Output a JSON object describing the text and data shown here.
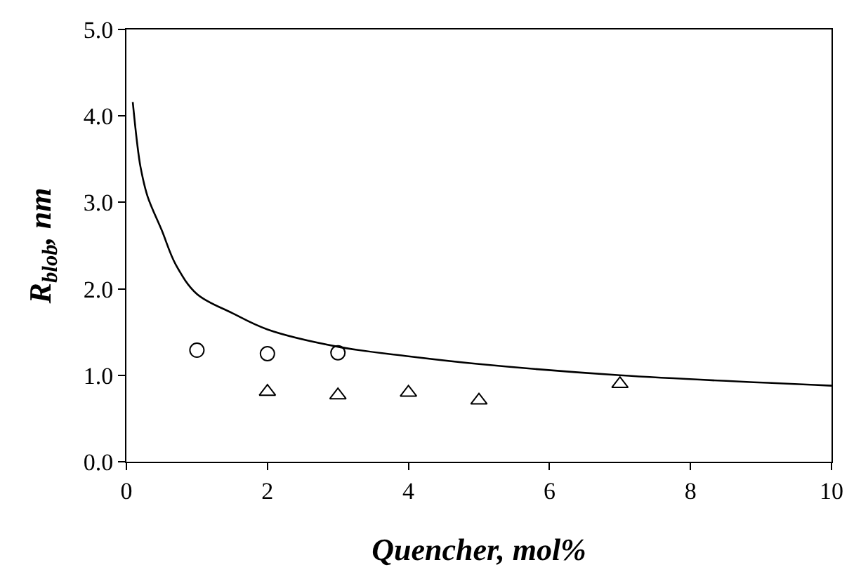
{
  "chart_data": {
    "type": "scatter",
    "xlabel": "Quencher, mol%",
    "ylabel": "R$_{blob}$, nm",
    "xlim": [
      0,
      10
    ],
    "xticks": [
      0,
      2,
      4,
      6,
      8,
      10
    ],
    "ylim": [
      0,
      5
    ],
    "yticks": [
      {
        "value": 0,
        "label": "0.0"
      },
      {
        "value": 1,
        "label": "1.0"
      },
      {
        "value": 2,
        "label": "2.0"
      },
      {
        "value": 3,
        "label": "3.0"
      },
      {
        "value": 4,
        "label": "4.0"
      },
      {
        "value": 5,
        "label": "5.0"
      }
    ],
    "series": [
      {
        "type": "line",
        "color": "#000000",
        "marker": "none",
        "line_style": "solid",
        "x": [
          0.09,
          0.15,
          0.2,
          0.3,
          0.5,
          0.7,
          1,
          1.5,
          2,
          3,
          4,
          5,
          7,
          10
        ],
        "values": [
          4.16,
          3.7,
          3.41,
          3.07,
          2.68,
          2.28,
          1.94,
          1.72,
          1.53,
          1.33,
          1.22,
          1.13,
          1.0,
          0.88
        ]
      },
      {
        "color": "#000000",
        "marker": "circle",
        "x": [
          1,
          2,
          3
        ],
        "values": [
          1.29,
          1.25,
          1.26
        ]
      },
      {
        "color": "#000000",
        "marker": "triangle",
        "x": [
          2,
          3,
          4,
          5,
          7
        ],
        "values": [
          0.81,
          0.77,
          0.8,
          0.71,
          0.9
        ]
      }
    ]
  }
}
